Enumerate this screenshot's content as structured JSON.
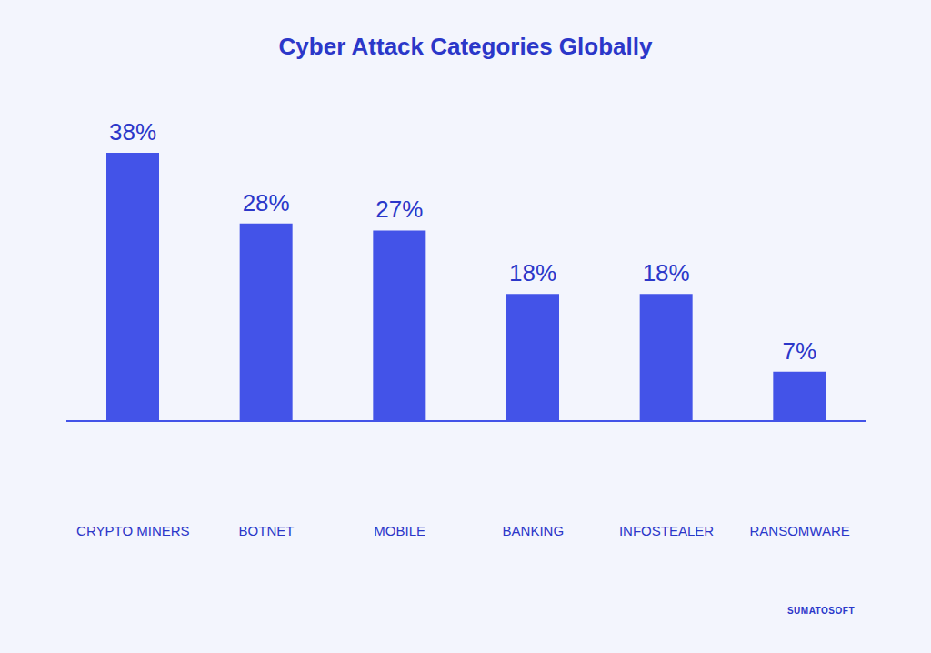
{
  "chart_data": {
    "type": "bar",
    "title": "Cyber Attack Categories Globally",
    "categories": [
      "CRYPTO MINERS",
      "BOTNET",
      "MOBILE",
      "BANKING",
      "INFOSTEALER",
      "RANSOMWARE"
    ],
    "values": [
      38,
      28,
      27,
      18,
      18,
      7
    ],
    "value_labels": [
      "38%",
      "28%",
      "27%",
      "18%",
      "18%",
      "7%"
    ],
    "color": "#4353e8",
    "data_labels": true,
    "tick_labels": "x",
    "grid": false,
    "annotations": [
      "SUMATOSOFT"
    ]
  }
}
